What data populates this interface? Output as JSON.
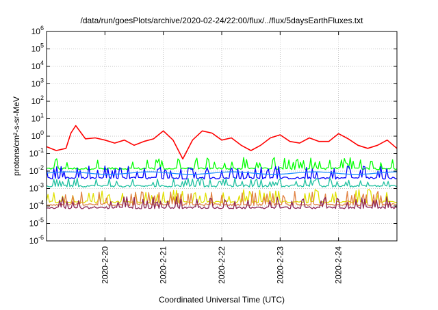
{
  "chart_data": {
    "type": "line",
    "title": "/data/run/goesPlots/archive/2020-02-24/22:00/flux/../flux/5daysEarthFluxes.txt",
    "xlabel": "Coordinated Universal Time (UTC)",
    "ylabel": "protons/cm²-s-sr-MeV",
    "x_range": [
      "2020-02-19T00:00",
      "2020-02-25T00:00"
    ],
    "x_ticks": [
      "2020-2-20",
      "2020-2-21",
      "2020-2-22",
      "2020-2-23",
      "2020-2-24"
    ],
    "y_scale": "log",
    "ylim": [
      1e-06,
      1000000
    ],
    "y_ticks": [
      {
        "value": 1e-06,
        "mantissa": "10",
        "exp": "-6"
      },
      {
        "value": 1e-05,
        "mantissa": "10",
        "exp": "-5"
      },
      {
        "value": 0.0001,
        "mantissa": "10",
        "exp": "-4"
      },
      {
        "value": 0.001,
        "mantissa": "10",
        "exp": "-3"
      },
      {
        "value": 0.01,
        "mantissa": "10",
        "exp": "-2"
      },
      {
        "value": 0.1,
        "mantissa": "10",
        "exp": "-1"
      },
      {
        "value": 1,
        "mantissa": "10",
        "exp": "0"
      },
      {
        "value": 10,
        "mantissa": "10",
        "exp": "1"
      },
      {
        "value": 100,
        "mantissa": "10",
        "exp": "2"
      },
      {
        "value": 1000,
        "mantissa": "10",
        "exp": "3"
      },
      {
        "value": 10000,
        "mantissa": "10",
        "exp": "4"
      },
      {
        "value": 100000,
        "mantissa": "10",
        "exp": "5"
      },
      {
        "value": 1000000,
        "mantissa": "10",
        "exp": "6"
      }
    ],
    "grid": true,
    "series": [
      {
        "color": "#ff0000",
        "style": "smooth",
        "x": [
          "2020-02-19T00:00",
          "2020-02-19T04:00",
          "2020-02-19T08:00",
          "2020-02-19T10:00",
          "2020-02-19T12:00",
          "2020-02-19T16:00",
          "2020-02-19T20:00",
          "2020-02-20T00:00",
          "2020-02-20T04:00",
          "2020-02-20T08:00",
          "2020-02-20T12:00",
          "2020-02-20T16:00",
          "2020-02-20T20:00",
          "2020-02-21T00:00",
          "2020-02-21T04:00",
          "2020-02-21T08:00",
          "2020-02-21T12:00",
          "2020-02-21T16:00",
          "2020-02-21T20:00",
          "2020-02-22T00:00",
          "2020-02-22T04:00",
          "2020-02-22T08:00",
          "2020-02-22T12:00",
          "2020-02-22T16:00",
          "2020-02-22T20:00",
          "2020-02-23T00:00",
          "2020-02-23T04:00",
          "2020-02-23T08:00",
          "2020-02-23T12:00",
          "2020-02-23T16:00",
          "2020-02-23T20:00",
          "2020-02-24T00:00",
          "2020-02-24T04:00",
          "2020-02-24T08:00",
          "2020-02-24T12:00",
          "2020-02-24T16:00",
          "2020-02-24T20:00",
          "2020-02-24T23:59"
        ],
        "values": [
          0.25,
          0.15,
          0.2,
          1.5,
          4,
          0.7,
          0.8,
          0.6,
          0.4,
          0.6,
          0.3,
          0.5,
          0.7,
          2,
          0.6,
          0.05,
          0.6,
          2,
          1.5,
          0.6,
          0.8,
          0.3,
          0.15,
          0.3,
          0.8,
          1.2,
          0.5,
          0.4,
          0.8,
          0.5,
          0.5,
          1.4,
          0.7,
          0.3,
          0.2,
          0.3,
          0.6,
          0.2
        ]
      },
      {
        "color": "#00ff00",
        "style": "spiky",
        "base": 0.014,
        "peak": 0.06
      },
      {
        "color": "#0000ff",
        "style": "spiky",
        "base": 0.004,
        "peak": 0.02
      },
      {
        "color": "#1e90ff",
        "style": "smooth",
        "base": 0.0065,
        "peak": 0.009
      },
      {
        "color": "#20c0a0",
        "style": "spiky",
        "base": 0.0014,
        "peak": 0.004
      },
      {
        "color": "#e0e000",
        "style": "spiky",
        "base": 0.00017,
        "peak": 0.0009
      },
      {
        "color": "#e08040",
        "style": "spiky",
        "base": 0.00012,
        "peak": 0.0007
      },
      {
        "color": "#8b2252",
        "style": "spiky",
        "base": 8e-05,
        "peak": 0.00035
      }
    ]
  }
}
